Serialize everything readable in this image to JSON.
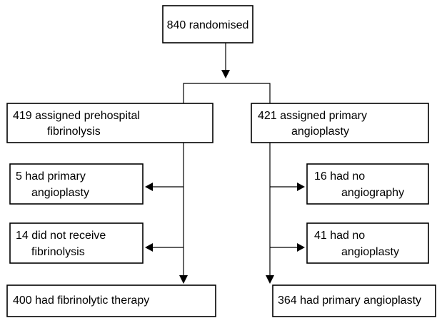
{
  "nodes": [
    {
      "lines": [
        "840 randomised"
      ]
    },
    {
      "lines": [
        "419 assigned prehospital",
        "fibrinolysis"
      ]
    },
    {
      "lines": [
        "421 assigned primary",
        "angioplasty"
      ]
    },
    {
      "lines": [
        "5 had primary",
        "angioplasty"
      ]
    },
    {
      "lines": [
        "14 did not receive",
        "fibrinolysis"
      ]
    },
    {
      "lines": [
        "16 had no",
        "angiography"
      ]
    },
    {
      "lines": [
        "41 had no",
        "angioplasty"
      ]
    },
    {
      "lines": [
        "400 had fibrinolytic therapy"
      ]
    },
    {
      "lines": [
        "364 had primary angioplasty"
      ]
    }
  ]
}
